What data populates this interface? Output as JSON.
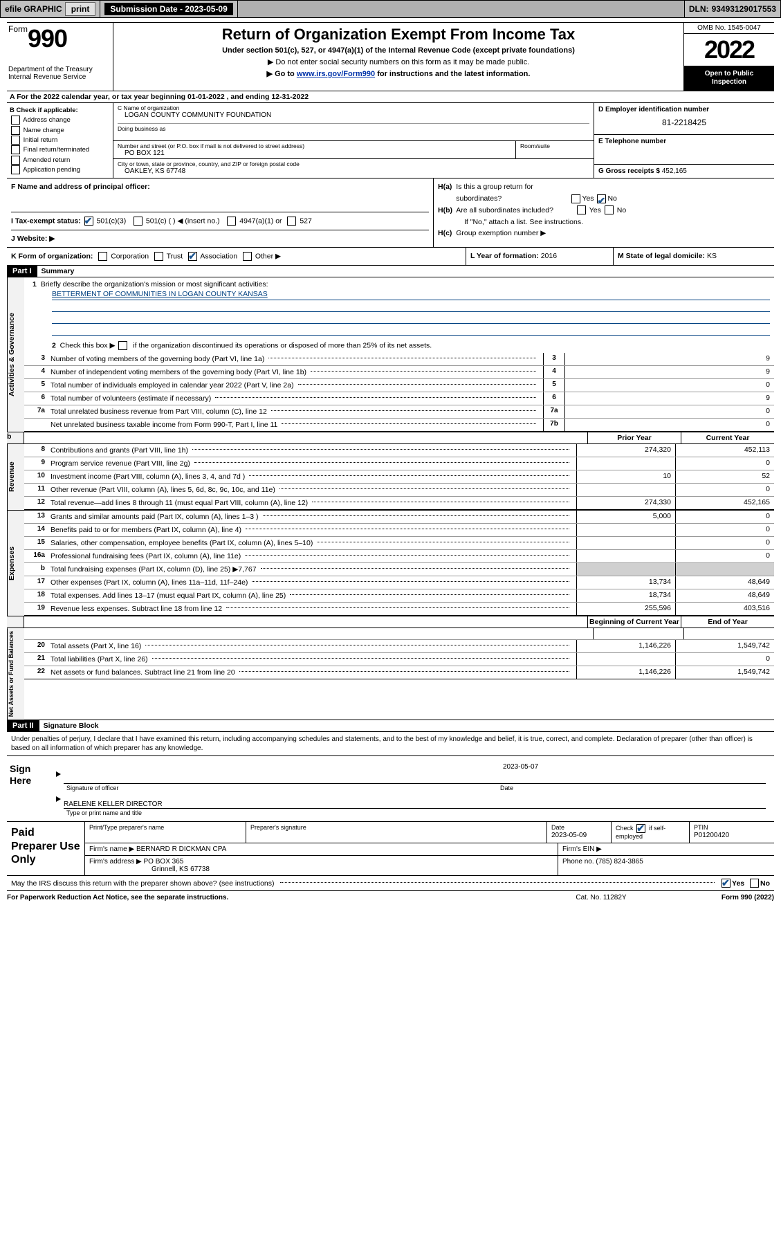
{
  "topbar": {
    "efile": "efile GRAPHIC",
    "print": "print",
    "subdate_lbl": "Submission Date - ",
    "subdate": "2023-05-09",
    "dln_lbl": "DLN: ",
    "dln": "93493129017553"
  },
  "header": {
    "form": "Form",
    "num": "990",
    "dept": "Department of the Treasury",
    "irs": "Internal Revenue Service",
    "title": "Return of Organization Exempt From Income Tax",
    "sub": "Under section 501(c), 527, or 4947(a)(1) of the Internal Revenue Code (except private foundations)",
    "note1": "▶ Do not enter social security numbers on this form as it may be made public.",
    "note2a": "▶ Go to ",
    "note2link": "www.irs.gov/Form990",
    "note2b": " for instructions and the latest information.",
    "omb": "OMB No. 1545-0047",
    "year": "2022",
    "open": "Open to Public Inspection"
  },
  "rowA": {
    "text": "A For the 2022 calendar year, or tax year beginning 01-01-2022   , and ending 12-31-2022"
  },
  "colB": {
    "lbl": "B Check if applicable:",
    "i1": "Address change",
    "i2": "Name change",
    "i3": "Initial return",
    "i4": "Final return/terminated",
    "i5": "Amended return",
    "i6": "Application pending"
  },
  "name": {
    "lbl": "C Name of organization",
    "val": "LOGAN COUNTY COMMUNITY FOUNDATION",
    "dba": "Doing business as"
  },
  "addr": {
    "lbl": "Number and street (or P.O. box if mail is not delivered to street address)",
    "room": "Room/suite",
    "val": "PO BOX 121",
    "city_lbl": "City or town, state or province, country, and ZIP or foreign postal code",
    "city": "OAKLEY, KS  67748"
  },
  "ein": {
    "lbl": "D Employer identification number",
    "val": "81-2218425"
  },
  "tel": {
    "lbl": "E Telephone number"
  },
  "gross": {
    "lbl": "G Gross receipts $ ",
    "val": "452,165"
  },
  "officer": {
    "lbl": "F  Name and address of principal officer:"
  },
  "tax": {
    "lbl": "I   Tax-exempt status:",
    "o1": "501(c)(3)",
    "o2": "501(c) (  )  ◀ (insert no.)",
    "o3": "4947(a)(1) or",
    "o4": "527"
  },
  "web": {
    "lbl": "J   Website: ▶"
  },
  "h": {
    "a": "H(a)  Is this a group return for subordinates?",
    "b": "H(b)  Are all subordinates included?",
    "bnote": "If \"No,\" attach a list. See instructions.",
    "c": "H(c)  Group exemption number ▶",
    "yes": "Yes",
    "no": "No"
  },
  "k": {
    "lbl": "K Form of organization:",
    "o1": "Corporation",
    "o2": "Trust",
    "o3": "Association",
    "o4": "Other ▶",
    "l_lbl": "L Year of formation: ",
    "l_val": "2016",
    "m_lbl": "M State of legal domicile: ",
    "m_val": "KS"
  },
  "part1": {
    "hdr": "Part I",
    "title": "Summary"
  },
  "mission": {
    "num": "1",
    "lbl": "Briefly describe the organization's mission or most significant activities:",
    "line1": "BETTERMENT OF COMMUNITIES IN LOGAN COUNTY KANSAS"
  },
  "line2": {
    "num": "2",
    "txt": "Check this box ▶        if the organization discontinued its operations or disposed of more than 25% of its net assets."
  },
  "gov": [
    {
      "n": "3",
      "d": "Number of voting members of the governing body (Part VI, line 1a)",
      "b": "3",
      "v": "9"
    },
    {
      "n": "4",
      "d": "Number of independent voting members of the governing body (Part VI, line 1b)",
      "b": "4",
      "v": "9"
    },
    {
      "n": "5",
      "d": "Total number of individuals employed in calendar year 2022 (Part V, line 2a)",
      "b": "5",
      "v": "0"
    },
    {
      "n": "6",
      "d": "Total number of volunteers (estimate if necessary)",
      "b": "6",
      "v": "9"
    },
    {
      "n": "7a",
      "d": "Total unrelated business revenue from Part VIII, column (C), line 12",
      "b": "7a",
      "v": "0"
    },
    {
      "n": "",
      "d": "Net unrelated business taxable income from Form 990-T, Part I, line 11",
      "b": "7b",
      "v": "0"
    }
  ],
  "cols": {
    "prior": "Prior Year",
    "current": "Current Year",
    "begin": "Beginning of Current Year",
    "end": "End of Year"
  },
  "rev": [
    {
      "n": "8",
      "d": "Contributions and grants (Part VIII, line 1h)",
      "p": "274,320",
      "c": "452,113"
    },
    {
      "n": "9",
      "d": "Program service revenue (Part VIII, line 2g)",
      "p": "",
      "c": "0"
    },
    {
      "n": "10",
      "d": "Investment income (Part VIII, column (A), lines 3, 4, and 7d )",
      "p": "10",
      "c": "52"
    },
    {
      "n": "11",
      "d": "Other revenue (Part VIII, column (A), lines 5, 6d, 8c, 9c, 10c, and 11e)",
      "p": "",
      "c": "0"
    },
    {
      "n": "12",
      "d": "Total revenue—add lines 8 through 11 (must equal Part VIII, column (A), line 12)",
      "p": "274,330",
      "c": "452,165"
    }
  ],
  "exp": [
    {
      "n": "13",
      "d": "Grants and similar amounts paid (Part IX, column (A), lines 1–3 )",
      "p": "5,000",
      "c": "0"
    },
    {
      "n": "14",
      "d": "Benefits paid to or for members (Part IX, column (A), line 4)",
      "p": "",
      "c": "0"
    },
    {
      "n": "15",
      "d": "Salaries, other compensation, employee benefits (Part IX, column (A), lines 5–10)",
      "p": "",
      "c": "0"
    },
    {
      "n": "16a",
      "d": "Professional fundraising fees (Part IX, column (A), line 11e)",
      "p": "",
      "c": "0"
    },
    {
      "n": "b",
      "d": "Total fundraising expenses (Part IX, column (D), line 25) ▶7,767",
      "p": "GRAY",
      "c": "GRAY"
    },
    {
      "n": "17",
      "d": "Other expenses (Part IX, column (A), lines 11a–11d, 11f–24e)",
      "p": "13,734",
      "c": "48,649"
    },
    {
      "n": "18",
      "d": "Total expenses. Add lines 13–17 (must equal Part IX, column (A), line 25)",
      "p": "18,734",
      "c": "48,649"
    },
    {
      "n": "19",
      "d": "Revenue less expenses. Subtract line 18 from line 12",
      "p": "255,596",
      "c": "403,516"
    }
  ],
  "net": [
    {
      "n": "20",
      "d": "Total assets (Part X, line 16)",
      "p": "1,146,226",
      "c": "1,549,742"
    },
    {
      "n": "21",
      "d": "Total liabilities (Part X, line 26)",
      "p": "",
      "c": "0"
    },
    {
      "n": "22",
      "d": "Net assets or fund balances. Subtract line 21 from line 20",
      "p": "1,146,226",
      "c": "1,549,742"
    }
  ],
  "vtabs": {
    "gov": "Activities & Governance",
    "rev": "Revenue",
    "exp": "Expenses",
    "net": "Net Assets or Fund Balances"
  },
  "part2": {
    "hdr": "Part II",
    "title": "Signature Block"
  },
  "decl": "Under penalties of perjury, I declare that I have examined this return, including accompanying schedules and statements, and to the best of my knowledge and belief, it is true, correct, and complete. Declaration of preparer (other than officer) is based on all information of which preparer has any knowledge.",
  "sign": {
    "lbl": "Sign Here",
    "sig_lbl": "Signature of officer",
    "date_lbl": "Date",
    "date": "2023-05-07",
    "name": "RAELENE KELLER  DIRECTOR",
    "name_lbl": "Type or print name and title"
  },
  "paid": {
    "lbl": "Paid Preparer Use Only",
    "col1": "Print/Type preparer's name",
    "col2": "Preparer's signature",
    "col3": "Date",
    "date": "2023-05-09",
    "col4a": "Check",
    "col4b": "if self-employed",
    "col5": "PTIN",
    "ptin": "P01200420",
    "firm_lbl": "Firm's name     ▶ ",
    "firm": "BERNARD R DICKMAN CPA",
    "ein_lbl": "Firm's EIN ▶",
    "addr_lbl": "Firm's address ▶ ",
    "addr1": "PO BOX 365",
    "addr2": "Grinnell, KS  67738",
    "phone_lbl": "Phone no. ",
    "phone": "(785) 824-3865"
  },
  "footer1": {
    "txt": "May the IRS discuss this return with the preparer shown above? (see instructions)",
    "yes": "Yes",
    "no": "No"
  },
  "footer2": {
    "l": "For Paperwork Reduction Act Notice, see the separate instructions.",
    "c": "Cat. No. 11282Y",
    "r": "Form 990 (2022)"
  }
}
